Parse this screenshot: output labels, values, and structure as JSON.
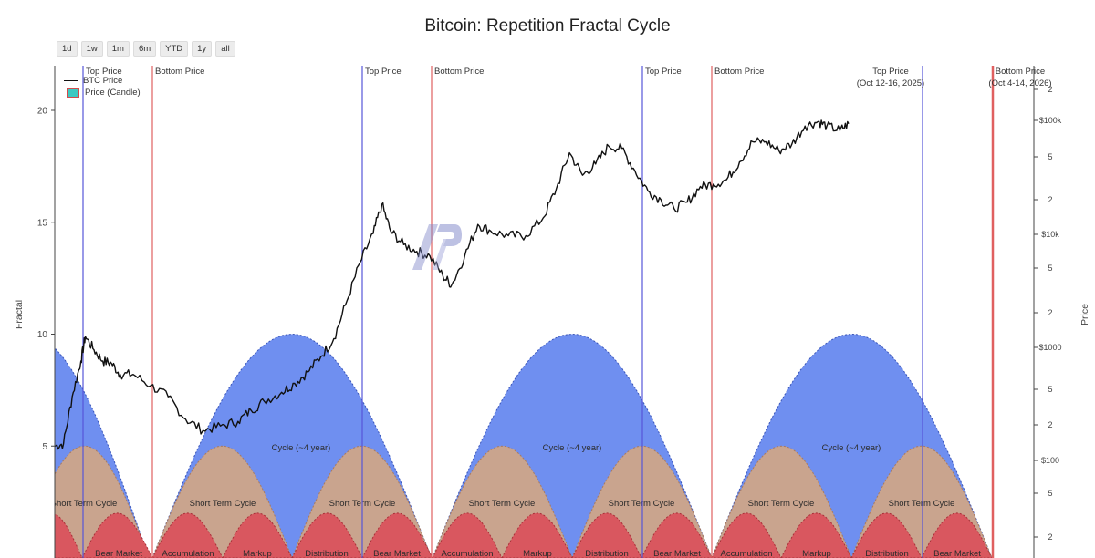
{
  "chart_data": {
    "type": "line",
    "title": "Bitcoin: Repetition Fractal Cycle",
    "ylabel_left": "Fractal",
    "ylabel_right": "Price",
    "left_axis": {
      "ylim": [
        0,
        22
      ],
      "ticks": [
        5,
        10,
        15,
        20
      ]
    },
    "right_axis": {
      "scale": "log",
      "ticks": [
        {
          "value": 2,
          "label": "2"
        },
        {
          "value": 5,
          "label": "5"
        },
        {
          "value": 10,
          "label": "$10k"
        }
      ],
      "tick_labels": [
        "2",
        "$100k",
        "5",
        "2",
        "$10k",
        "5",
        "2",
        "$1000",
        "5",
        "2",
        "$100",
        "5",
        "2"
      ]
    },
    "range_buttons": [
      "1d",
      "1w",
      "1m",
      "6m",
      "YTD",
      "1y",
      "all"
    ],
    "legend": [
      {
        "name": "BTC Price",
        "kind": "line"
      },
      {
        "name": "Price (Candle)",
        "kind": "candle"
      }
    ],
    "markers": [
      {
        "type": "top",
        "label": "Top Price",
        "x": 0.075
      },
      {
        "type": "bottom",
        "label": "Bottom Price",
        "x": 0.195
      },
      {
        "type": "top",
        "label": "Top Price",
        "x": 0.375
      },
      {
        "type": "bottom",
        "label": "Bottom Price",
        "x": 0.455
      },
      {
        "type": "top",
        "label": "Top Price",
        "x": 0.68
      },
      {
        "type": "bottom",
        "label": "Bottom Price",
        "x": 0.755
      },
      {
        "type": "top",
        "label": "Top Price",
        "sublabel": "(Oct 12-16, 2025)",
        "x": 1.0
      },
      {
        "type": "bottom",
        "label": "Bottom Price",
        "sublabel": "(Oct 4-14, 2026)",
        "x": 1.07
      }
    ],
    "colors": {
      "long_cycle": "#6f8ff0",
      "short_cycle": "#c9a48e",
      "phase": "#d9575f",
      "top_line": "#5656d8",
      "bottom_line": "#e06060",
      "price": "#111111"
    },
    "cycle_labels": [
      "Cycle (~4 year)",
      "Cycle (~4 year)",
      "Cycle (~4 year)"
    ],
    "short_cycle_labels": [
      "Short Term Cycle",
      "Short Term Cycle",
      "Short Term Cycle",
      "Short Term Cycle",
      "Short Term Cycle",
      "Short Term Cycle",
      "Short Term Cycle"
    ],
    "phase_labels": [
      "Bear Market",
      "Accumulation",
      "Markup",
      "Distribution",
      "Bear Market",
      "Accumulation",
      "Markup",
      "Distribution",
      "Bear Market",
      "Accumulation",
      "Markup",
      "Distribution",
      "Bear Market"
    ],
    "series": [
      {
        "name": "BTC Price",
        "points": [
          [
            0.0,
            5.0
          ],
          [
            0.01,
            5.1
          ],
          [
            0.02,
            7.2
          ],
          [
            0.03,
            8.8
          ],
          [
            0.035,
            9.9
          ],
          [
            0.045,
            9.3
          ],
          [
            0.055,
            8.8
          ],
          [
            0.065,
            8.7
          ],
          [
            0.075,
            8.2
          ],
          [
            0.09,
            8.2
          ],
          [
            0.11,
            7.7
          ],
          [
            0.13,
            7.2
          ],
          [
            0.15,
            6.2
          ],
          [
            0.17,
            5.7
          ],
          [
            0.19,
            5.9
          ],
          [
            0.21,
            6.1
          ],
          [
            0.225,
            6.6
          ],
          [
            0.24,
            7.0
          ],
          [
            0.26,
            7.4
          ],
          [
            0.275,
            7.8
          ],
          [
            0.29,
            8.3
          ],
          [
            0.305,
            9.0
          ],
          [
            0.32,
            9.8
          ],
          [
            0.335,
            11.5
          ],
          [
            0.35,
            13.2
          ],
          [
            0.365,
            14.5
          ],
          [
            0.375,
            15.8
          ],
          [
            0.385,
            14.6
          ],
          [
            0.4,
            14.0
          ],
          [
            0.415,
            13.7
          ],
          [
            0.43,
            13.5
          ],
          [
            0.445,
            12.6
          ],
          [
            0.455,
            12.2
          ],
          [
            0.47,
            13.5
          ],
          [
            0.485,
            14.9
          ],
          [
            0.5,
            14.6
          ],
          [
            0.52,
            14.4
          ],
          [
            0.54,
            14.4
          ],
          [
            0.56,
            15.2
          ],
          [
            0.575,
            16.5
          ],
          [
            0.59,
            18.1
          ],
          [
            0.605,
            17.1
          ],
          [
            0.62,
            17.6
          ],
          [
            0.635,
            18.4
          ],
          [
            0.65,
            18.3
          ],
          [
            0.665,
            17.3
          ],
          [
            0.68,
            16.4
          ],
          [
            0.695,
            16.0
          ],
          [
            0.71,
            15.6
          ],
          [
            0.725,
            15.9
          ],
          [
            0.74,
            16.6
          ],
          [
            0.755,
            16.7
          ],
          [
            0.77,
            16.9
          ],
          [
            0.785,
            17.7
          ],
          [
            0.8,
            18.6
          ],
          [
            0.815,
            18.6
          ],
          [
            0.83,
            18.2
          ],
          [
            0.845,
            18.5
          ],
          [
            0.86,
            19.3
          ],
          [
            0.875,
            19.5
          ],
          [
            0.885,
            19.3
          ],
          [
            0.9,
            19.1
          ],
          [
            0.91,
            19.4
          ]
        ]
      }
    ]
  }
}
